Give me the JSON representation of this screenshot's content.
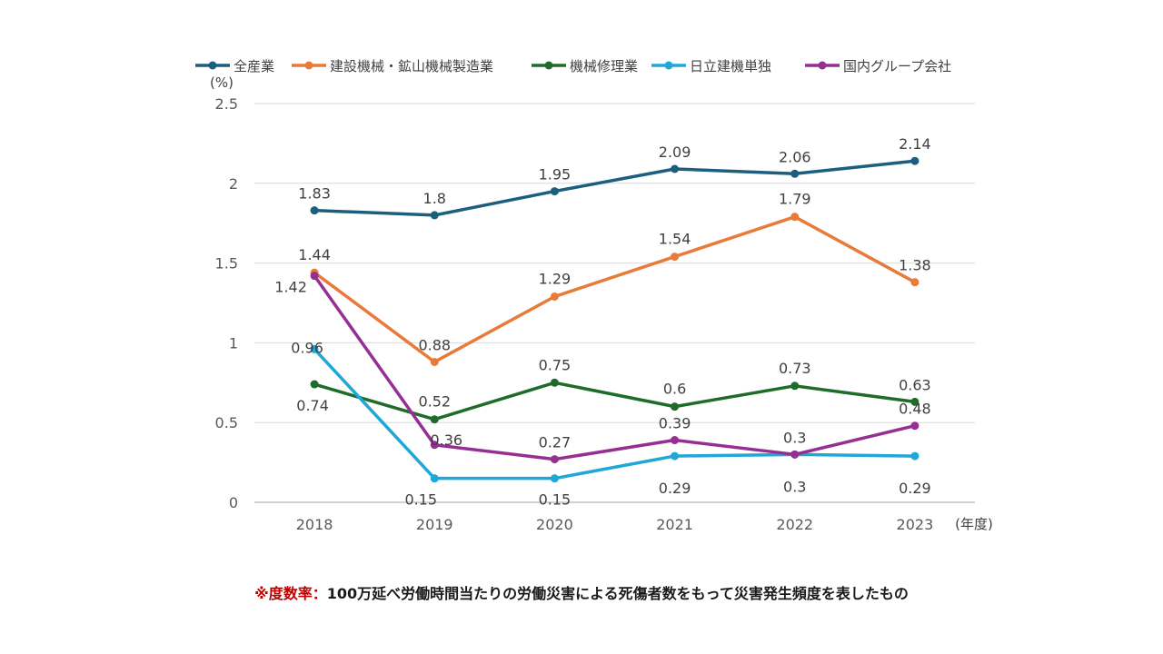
{
  "chart_data": {
    "type": "line",
    "categories": [
      "2018",
      "2019",
      "2020",
      "2021",
      "2022",
      "2023"
    ],
    "ylim": [
      0,
      2.5
    ],
    "yticks": [
      "0",
      "0.5",
      "1",
      "1.5",
      "2",
      "2.5"
    ],
    "ylabel": "(%)",
    "xlabel": "(年度)",
    "series": [
      {
        "name": "全産業",
        "color": "#1b5e7e",
        "values": [
          1.83,
          1.8,
          1.95,
          2.09,
          2.06,
          2.14
        ],
        "labels": [
          "1.83",
          "1.8",
          "1.95",
          "2.09",
          "2.06",
          "2.14"
        ]
      },
      {
        "name": "建設機械・鉱山機械製造業",
        "color": "#e87a3a",
        "values": [
          1.44,
          0.88,
          1.29,
          1.54,
          1.79,
          1.38
        ],
        "labels": [
          "1.44",
          "0.88",
          "1.29",
          "1.54",
          "1.79",
          "1.38"
        ]
      },
      {
        "name": "機械修理業",
        "color": "#1e6b2a",
        "values": [
          0.74,
          0.52,
          0.75,
          0.6,
          0.73,
          0.63
        ],
        "labels": [
          "0.74",
          "0.52",
          "0.75",
          "0.6",
          "0.73",
          "0.63"
        ]
      },
      {
        "name": "日立建機単独",
        "color": "#20a7d8",
        "values": [
          0.96,
          0.15,
          0.15,
          0.29,
          0.3,
          0.29
        ],
        "labels": [
          "0.96",
          "0.15",
          "0.15",
          "0.29",
          "0.3",
          "0.29"
        ]
      },
      {
        "name": "国内グループ会社",
        "color": "#962f92",
        "values": [
          1.42,
          0.36,
          0.27,
          0.39,
          0.3,
          0.48
        ],
        "labels": [
          "1.42",
          "0.36",
          "0.27",
          "0.39",
          "0.3",
          "0.48"
        ]
      }
    ]
  },
  "footnote": {
    "head": "※度数率：",
    "body": "100万延べ労働時間当たりの労働災害による死傷者数をもって災害発生頻度を表したもの"
  }
}
